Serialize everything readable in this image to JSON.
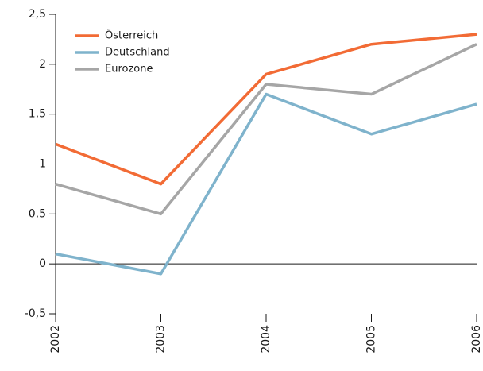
{
  "chart_data": {
    "type": "line",
    "x": [
      2002,
      2003,
      2004,
      2005,
      2006
    ],
    "xlim": [
      2002,
      2006
    ],
    "xticks": [
      2002,
      2003,
      2004,
      2005,
      2006
    ],
    "ylim": [
      -0.5,
      2.5
    ],
    "yticks": [
      {
        "value": -0.5,
        "label": "-0,5"
      },
      0,
      {
        "value": 0.5,
        "label": "0,5"
      },
      1,
      {
        "value": 1.5,
        "label": "1,5"
      },
      2,
      {
        "value": 2.5,
        "label": "2,5"
      }
    ],
    "legend": "upper left",
    "series": [
      {
        "name": "Österreich",
        "color": "#f26b35",
        "values": [
          1.2,
          0.8,
          1.9,
          2.2,
          2.3
        ]
      },
      {
        "name": "Deutschland",
        "color": "#7fb3cc",
        "values": [
          0.1,
          -0.1,
          1.7,
          1.3,
          1.6
        ]
      },
      {
        "name": "Eurozone",
        "color": "#a6a6a6",
        "values": [
          0.8,
          0.5,
          1.8,
          1.7,
          2.2
        ]
      }
    ]
  }
}
